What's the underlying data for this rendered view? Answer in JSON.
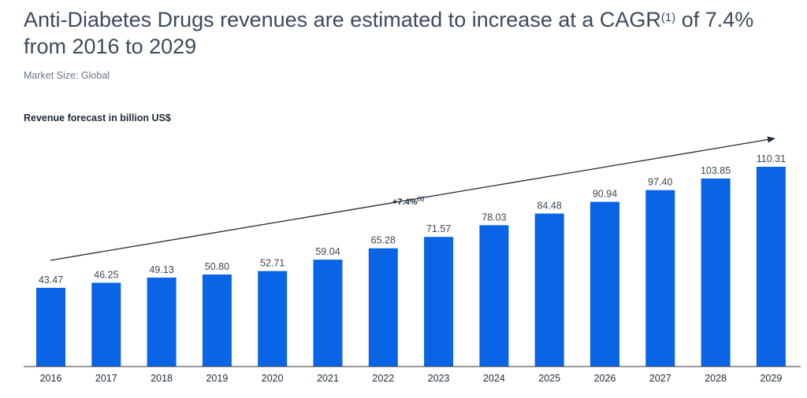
{
  "header": {
    "title_main": "Anti-Diabetes Drugs revenues are estimated to increase at a CAGR",
    "title_sup": "(1)",
    "title_tail": " of 7.4%",
    "title_line2": "from 2016 to 2029",
    "subtitle": "Market Size: Global"
  },
  "colors": {
    "bar": "#0a64e6",
    "axis": "#333333",
    "arrow": "#1f2a37"
  },
  "chart_data": {
    "type": "bar",
    "title": "Revenue forecast in billion US$",
    "categories": [
      "2016",
      "2017",
      "2018",
      "2019",
      "2020",
      "2021",
      "2022",
      "2023",
      "2024",
      "2025",
      "2026",
      "2027",
      "2028",
      "2029"
    ],
    "values": [
      43.47,
      46.25,
      49.13,
      50.8,
      52.71,
      59.04,
      65.28,
      71.57,
      78.03,
      84.48,
      90.94,
      97.4,
      103.85,
      110.31
    ],
    "value_labels": [
      "43.47",
      "46.25",
      "49.13",
      "50.80",
      "52.71",
      "59.04",
      "65.28",
      "71.57",
      "78.03",
      "84.48",
      "90.94",
      "97.40",
      "103.85",
      "110.31"
    ],
    "xlabel": "",
    "ylabel": "",
    "ylim": [
      0,
      110.31
    ],
    "annotation": {
      "label": "+7.4%",
      "sup": "(1)"
    }
  }
}
